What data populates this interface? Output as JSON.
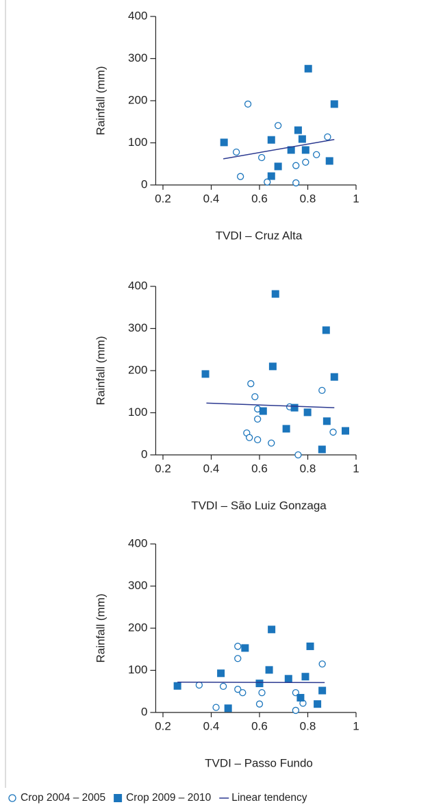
{
  "chart_data": [
    {
      "type": "scatter",
      "y_label": "Rainfall (mm)",
      "x_label": "TVDI – Cruz Alta",
      "xlim": [
        0.17,
        1
      ],
      "ylim": [
        0,
        400
      ],
      "xticks": [
        0.2,
        0.4,
        0.6,
        0.8,
        1
      ],
      "yticks": [
        0,
        100,
        200,
        300,
        400
      ],
      "series": [
        {
          "name": "Crop 2004 – 2005",
          "marker": "circle",
          "color": "#1b75bc",
          "x": [
            0.552,
            0.677,
            0.504,
            0.609,
            0.521,
            0.632,
            0.751,
            0.791,
            0.836,
            0.882,
            0.751
          ],
          "values": [
            192,
            141,
            78,
            65,
            20,
            7,
            46,
            54,
            72,
            114,
            5
          ]
        },
        {
          "name": "Crop 2009 – 2010",
          "marker": "square",
          "color": "#1b75bc",
          "x": [
            0.453,
            0.649,
            0.677,
            0.649,
            0.76,
            0.777,
            0.731,
            0.791,
            0.802,
            0.91,
            0.89
          ],
          "values": [
            101,
            107,
            44,
            21,
            130,
            109,
            83,
            83,
            276,
            192,
            57
          ]
        },
        {
          "name": "Linear tendency",
          "marker": "line",
          "color": "#2b3990",
          "x": [
            0.45,
            0.91
          ],
          "values": [
            62,
            108
          ]
        }
      ]
    },
    {
      "type": "scatter",
      "y_label": "Rainfall (mm)",
      "x_label": "TVDI – São Luiz Gonzaga",
      "xlim": [
        0.17,
        1
      ],
      "ylim": [
        0,
        400
      ],
      "xticks": [
        0.2,
        0.4,
        0.6,
        0.8,
        1
      ],
      "yticks": [
        0,
        100,
        200,
        300,
        400
      ],
      "series": [
        {
          "name": "Crop 2004 – 2005",
          "marker": "circle",
          "color": "#1b75bc",
          "x": [
            0.564,
            0.581,
            0.592,
            0.592,
            0.592,
            0.547,
            0.558,
            0.649,
            0.725,
            0.859,
            0.905,
            0.76
          ],
          "values": [
            169,
            138,
            109,
            85,
            36,
            52,
            41,
            28,
            114,
            153,
            54,
            0
          ]
        },
        {
          "name": "Crop 2009 – 2010",
          "marker": "square",
          "color": "#1b75bc",
          "x": [
            0.376,
            0.666,
            0.655,
            0.876,
            0.91,
            0.615,
            0.745,
            0.711,
            0.799,
            0.879,
            0.859,
            0.956
          ],
          "values": [
            192,
            382,
            210,
            296,
            185,
            104,
            112,
            62,
            101,
            80,
            13,
            57
          ]
        },
        {
          "name": "Linear tendency",
          "marker": "line",
          "color": "#2b3990",
          "x": [
            0.38,
            0.91
          ],
          "values": [
            123,
            112
          ]
        }
      ]
    },
    {
      "type": "scatter",
      "y_label": "Rainfall (mm)",
      "x_label": "TVDI – Passo Fundo",
      "xlim": [
        0.17,
        1
      ],
      "ylim": [
        0,
        400
      ],
      "xticks": [
        0.2,
        0.4,
        0.6,
        0.8,
        1
      ],
      "yticks": [
        0,
        100,
        200,
        300,
        400
      ],
      "series": [
        {
          "name": "Crop 2004 – 2005",
          "marker": "circle",
          "color": "#1b75bc",
          "x": [
            0.35,
            0.45,
            0.42,
            0.51,
            0.51,
            0.51,
            0.53,
            0.6,
            0.61,
            0.75,
            0.75,
            0.78,
            0.86
          ],
          "values": [
            65,
            62,
            12,
            157,
            128,
            55,
            47,
            20,
            47,
            47,
            5,
            22,
            115
          ]
        },
        {
          "name": "Crop 2009 – 2010",
          "marker": "square",
          "color": "#1b75bc",
          "x": [
            0.26,
            0.44,
            0.47,
            0.54,
            0.64,
            0.6,
            0.65,
            0.72,
            0.77,
            0.79,
            0.81,
            0.84,
            0.86
          ],
          "values": [
            63,
            93,
            10,
            153,
            101,
            69,
            197,
            80,
            35,
            85,
            157,
            20,
            52
          ]
        },
        {
          "name": "Linear tendency",
          "marker": "line",
          "color": "#2b3990",
          "x": [
            0.26,
            0.87
          ],
          "values": [
            72,
            71
          ]
        }
      ]
    }
  ]
}
